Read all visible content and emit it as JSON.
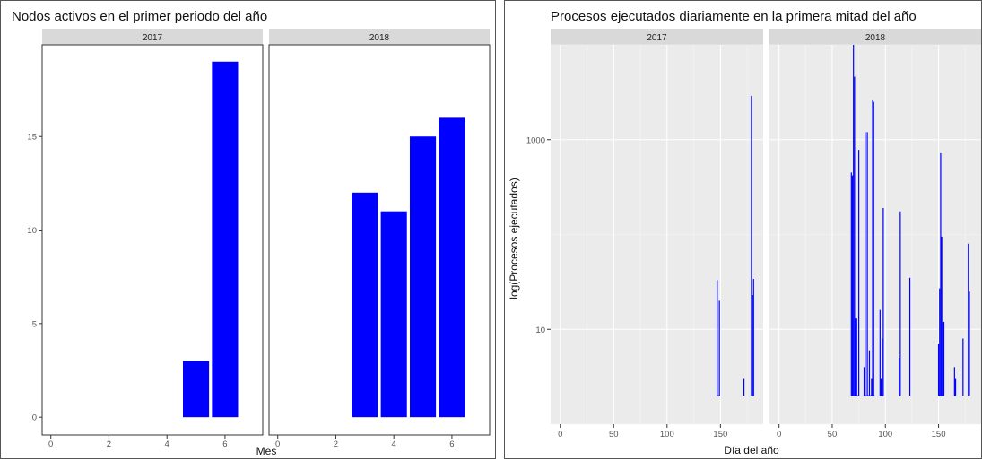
{
  "chart_data": [
    {
      "type": "bar",
      "title": "Nodos activos en el primer periodo del año",
      "xlabel": "Mes",
      "ylabel": "",
      "facets": [
        "2017",
        "2018"
      ],
      "xlim": [
        -0.3,
        7.3
      ],
      "ylim": [
        -0.95,
        19.9
      ],
      "xticks": [
        0,
        2,
        4,
        6
      ],
      "yticks": [
        0,
        5,
        10,
        15
      ],
      "bar_width": 0.9,
      "series": [
        {
          "facet": "2017",
          "x": [
            5,
            6
          ],
          "values": [
            3,
            19
          ]
        },
        {
          "facet": "2018",
          "x": [
            3,
            4,
            5,
            6
          ],
          "values": [
            12,
            11,
            15,
            16
          ]
        }
      ],
      "theme": "white background, no gridlines, grey facet strips",
      "color": "#0000ff"
    },
    {
      "type": "line",
      "title": "Procesos ejecutados diariamente en la primera mitad del año",
      "xlabel": "Día del año",
      "ylabel": "log(Procesos ejecutados)",
      "facets": [
        "2017",
        "2018"
      ],
      "y_scale": "log10",
      "xlim": [
        -9,
        190
      ],
      "ylim": [
        1,
        10000
      ],
      "xticks": [
        0,
        50,
        100,
        150
      ],
      "yticks": [
        10,
        1000
      ],
      "baseline": 2,
      "series": [
        {
          "facet": "2017",
          "x": [
            147,
            149,
            172,
            179,
            180,
            181
          ],
          "values": [
            33,
            20,
            3,
            2900,
            23,
            34
          ]
        },
        {
          "facet": "2018",
          "x": [
            68,
            69,
            70,
            71,
            72,
            73,
            75,
            80,
            81,
            83,
            85,
            87,
            88,
            89,
            90,
            95,
            96,
            97,
            98,
            113,
            114,
            123,
            150,
            151,
            152,
            153,
            154,
            155,
            165,
            166,
            173,
            178,
            179
          ],
          "values": [
            450,
            420,
            10000,
            4600,
            13,
            13,
            780,
            4,
            1200,
            1200,
            6,
            3,
            2600,
            2500,
            2,
            16,
            3,
            8,
            190,
            5,
            175,
            35,
            7,
            27,
            720,
            95,
            12,
            12,
            4,
            3,
            8,
            80,
            25
          ]
        }
      ],
      "theme": "grey panel background, white gridlines",
      "color": "#0000ff"
    }
  ]
}
